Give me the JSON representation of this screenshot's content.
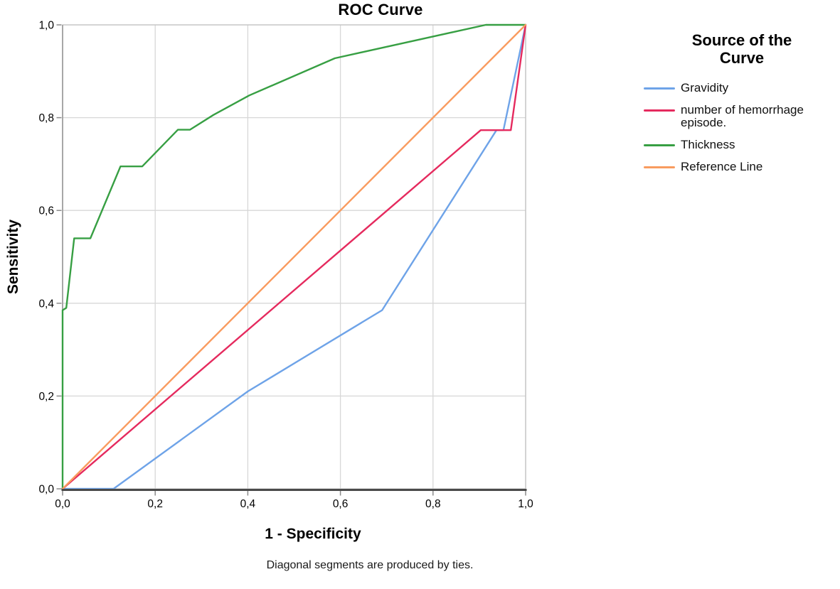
{
  "legend": {
    "title": "Source of the Curve",
    "entries": [
      {
        "label": "Gravidity"
      },
      {
        "label": "number of hemorrhage episode."
      },
      {
        "label": "Thickness"
      },
      {
        "label": "Reference Line"
      }
    ]
  },
  "axes": {
    "x_tick_labels": [
      "0,0",
      "0,2",
      "0,4",
      "0,6",
      "0,8",
      "1,0"
    ],
    "y_tick_labels": [
      "0,0",
      "0,2",
      "0,4",
      "0,6",
      "0,8",
      "1,0"
    ]
  },
  "footnote": "Diagonal segments are produced by ties.",
  "colors": {
    "grid": "#d7d7d7",
    "frame": "#c2c2c2",
    "axis_left": "#9b9b9b",
    "axis_bottom": "#4a4a4a",
    "tick": "#8a8a8a",
    "text": "#000000"
  },
  "chart_data": {
    "type": "line",
    "title": "ROC Curve",
    "xlabel": "1 - Specificity",
    "ylabel": "Sensitivity",
    "xlim": [
      0,
      1
    ],
    "ylim": [
      0,
      1
    ],
    "grid": true,
    "legend_position": "right",
    "tick_values": [
      0,
      0.2,
      0.4,
      0.6,
      0.8,
      1
    ],
    "series": [
      {
        "name": "Gravidity",
        "color": "#6ea3e8",
        "points": [
          [
            0,
            0
          ],
          [
            0.11,
            0
          ],
          [
            0.4,
            0.21
          ],
          [
            0.69,
            0.385
          ],
          [
            0.937,
            0.773
          ],
          [
            0.952,
            0.773
          ],
          [
            1,
            1
          ]
        ]
      },
      {
        "name": "number of hemorrhage episode.",
        "color": "#e52a5e",
        "points": [
          [
            0,
            0
          ],
          [
            0.903,
            0.773
          ],
          [
            0.968,
            0.773
          ],
          [
            1,
            1
          ]
        ]
      },
      {
        "name": "Thickness",
        "color": "#379f43",
        "points": [
          [
            0,
            0
          ],
          [
            0,
            0.385
          ],
          [
            0.008,
            0.39
          ],
          [
            0.025,
            0.54
          ],
          [
            0.06,
            0.54
          ],
          [
            0.125,
            0.695
          ],
          [
            0.172,
            0.695
          ],
          [
            0.249,
            0.774
          ],
          [
            0.275,
            0.774
          ],
          [
            0.326,
            0.806
          ],
          [
            0.403,
            0.848
          ],
          [
            0.588,
            0.928
          ],
          [
            0.914,
            1
          ],
          [
            1,
            1
          ]
        ]
      },
      {
        "name": "Reference Line",
        "color": "#f99b5f",
        "points": [
          [
            0,
            0
          ],
          [
            1,
            1
          ]
        ]
      }
    ]
  }
}
